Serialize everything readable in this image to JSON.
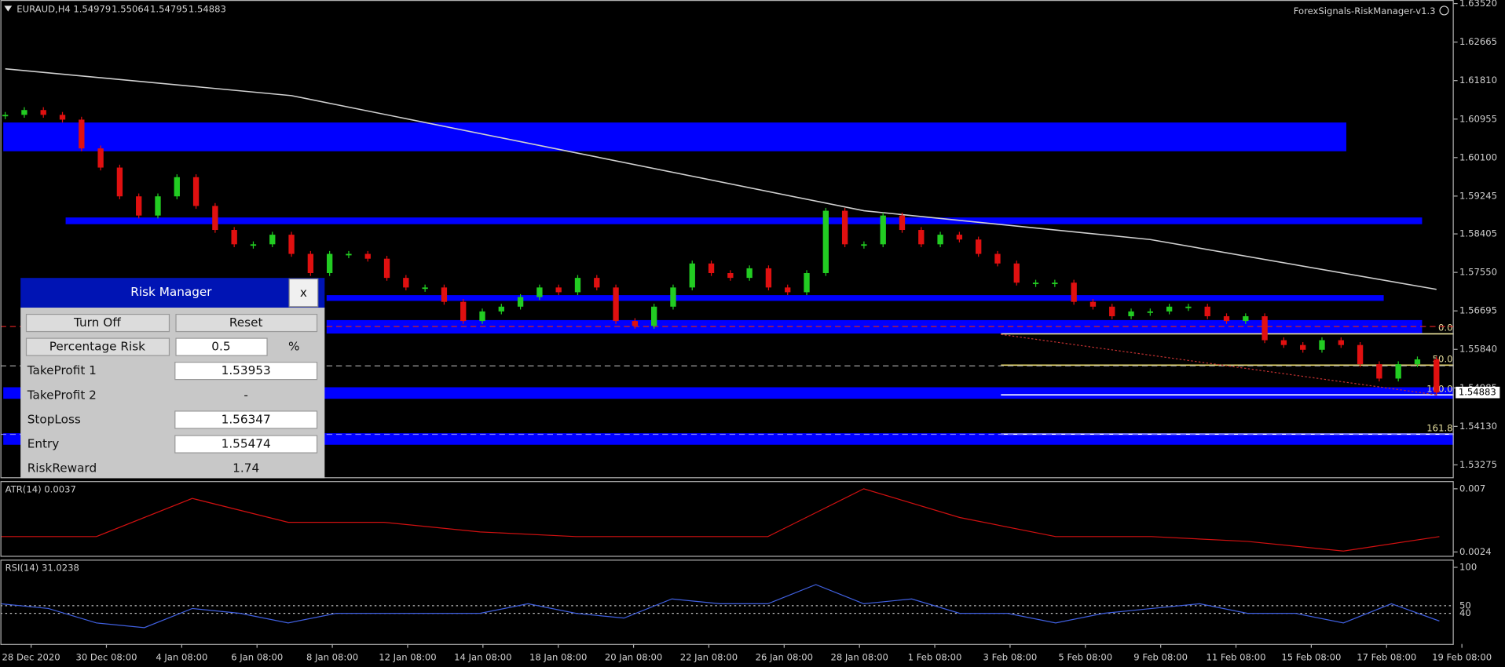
{
  "header": {
    "symbol": "EURAUD,H4",
    "ohlc": [
      1.54979,
      1.55064,
      1.54795,
      1.54883
    ],
    "indicator_name": "ForexSignals-RiskManager-v1.3"
  },
  "chart_data": {
    "type": "candlestick",
    "closes": [
      1.61049,
      1.61156,
      1.61049,
      1.60943,
      1.60304,
      1.59878,
      1.59239,
      1.58813,
      1.59239,
      1.59665,
      1.59026,
      1.58493,
      1.58174,
      1.58174,
      1.58387,
      1.57961,
      1.57535,
      1.57961,
      1.57961,
      1.57854,
      1.57428,
      1.57215,
      1.57215,
      1.56896,
      1.5647,
      1.56683,
      1.56789,
      1.57002,
      1.57215,
      1.57109,
      1.57428,
      1.57215,
      1.5647,
      1.56363,
      1.56789,
      1.57215,
      1.57748,
      1.57535,
      1.57428,
      1.57641,
      1.57215,
      1.57109,
      1.57535,
      1.58919,
      1.58174,
      1.58174,
      1.58813,
      1.58493,
      1.58174,
      1.58387,
      1.5828,
      1.57961,
      1.57748,
      1.57322,
      1.57322,
      1.57322,
      1.56896,
      1.56789,
      1.56576,
      1.56683,
      1.56683,
      1.56789,
      1.56789,
      1.56576,
      1.5647,
      1.56576,
      1.56044,
      1.55937,
      1.55831,
      1.56044,
      1.55937,
      1.55511,
      1.55192,
      1.55511,
      1.55618,
      1.54883
    ],
    "ylim": [
      1.53,
      1.636
    ],
    "yticks": [
      {
        "value": 1.6352,
        "label": "1.63520"
      },
      1.62665,
      {
        "value": 1.6181,
        "label": "1.61810"
      },
      1.60955,
      {
        "value": 1.601,
        "label": "1.60100"
      },
      1.59245,
      1.58405,
      {
        "value": 1.5755,
        "label": "1.57550"
      },
      1.56695,
      {
        "value": 1.5584,
        "label": "1.55840"
      },
      1.54985,
      {
        "value": 1.5413,
        "label": "1.54130"
      },
      1.53275
    ],
    "categories": [
      "28 Dec 2020",
      "30 Dec 08:00",
      "4 Jan 08:00",
      "6 Jan 08:00",
      "8 Jan 08:00",
      "12 Jan 08:00",
      "14 Jan 08:00",
      "18 Jan 08:00",
      "20 Jan 08:00",
      "22 Jan 08:00",
      "26 Jan 08:00",
      "28 Jan 08:00",
      "1 Feb 08:00",
      "3 Feb 08:00",
      "5 Feb 08:00",
      "9 Feb 08:00",
      "11 Feb 08:00",
      "15 Feb 08:00",
      "17 Feb 08:00",
      "19 Feb 08:00"
    ],
    "ma": {
      "x": [
        0,
        15,
        30,
        45,
        60,
        75
      ],
      "values": [
        1.62072,
        1.61476,
        1.60198,
        1.58919,
        1.5828,
        1.57173
      ],
      "color": "#d0d0d0"
    },
    "zones": [
      [
        1.60879,
        1.6024
      ],
      [
        1.5877,
        1.58621
      ],
      [
        1.57045,
        1.56917
      ],
      [
        1.56491,
        1.56192
      ],
      [
        1.54999,
        1.54743
      ],
      [
        1.53978,
        1.53722
      ]
    ],
    "zone_color": "#0000ff",
    "fib": [
      {
        "level": "0.0",
        "price": 1.56185
      },
      {
        "level": "50.0",
        "price": 1.5549
      },
      {
        "level": "100.0",
        "price": 1.5483
      },
      {
        "level": "161.8",
        "price": 1.53956
      }
    ],
    "up_color": "#22cc22",
    "down_color": "#e01010"
  },
  "atr": {
    "title": "ATR(14) 0.0037",
    "values": [
      0.00352,
      0.00352,
      0.0063,
      0.00456,
      0.00456,
      0.00386,
      0.00352,
      0.00352,
      0.00352,
      0.007,
      0.00491,
      0.00352,
      0.00352,
      0.00317,
      0.00247,
      0.00352
    ],
    "ylim": [
      0.00212,
      0.00756
    ],
    "yticks": [
      0.007,
      0.0024
    ],
    "color": "#d01010"
  },
  "rsi": {
    "title": "RSI(14) 31.0238",
    "values": [
      52.5,
      46.3,
      27.5,
      21.3,
      46.3,
      40,
      27.5,
      40,
      40,
      40,
      40,
      52.5,
      40,
      33.8,
      58.8,
      52.5,
      52.5,
      77.5,
      52.5,
      58.8,
      40,
      40,
      27.5,
      40,
      46.3,
      52.5,
      40,
      40,
      27.5,
      52.5,
      30
    ],
    "ylim": [
      0,
      110
    ],
    "yticks": [
      100,
      50,
      40
    ],
    "color": "#4060e0"
  },
  "risk_manager": {
    "title": "Risk Manager",
    "close": "x",
    "buttons": [
      "Turn Off",
      "Reset"
    ],
    "percentage_risk": {
      "label": "Percentage Risk",
      "value": 0.5,
      "unit": "%"
    },
    "rows": [
      {
        "label": "TakeProfit 1",
        "value": 1.53953
      },
      {
        "label": "TakeProfit 2",
        "value": "-"
      },
      {
        "label": "StopLoss",
        "value": 1.56347
      },
      {
        "label": "Entry",
        "value": 1.55474
      },
      {
        "label": "RiskReward",
        "value": 1.74
      }
    ]
  }
}
